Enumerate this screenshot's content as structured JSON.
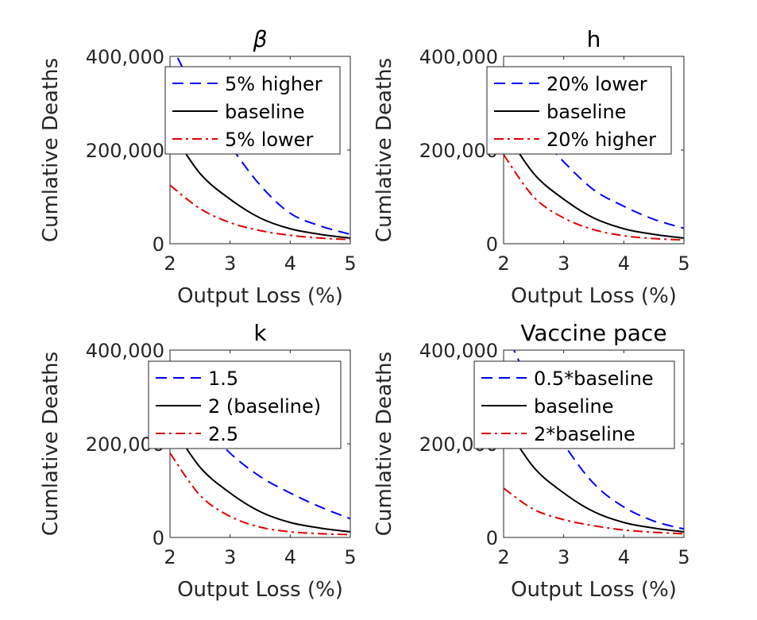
{
  "chart_data": [
    {
      "type": "line",
      "title": "β",
      "title_style": "italic",
      "xlabel": "Output Loss (%)",
      "ylabel": "Cumlative Deaths",
      "xlim": [
        2,
        5
      ],
      "ylim": [
        0,
        400000
      ],
      "xticks": [
        "2",
        "3",
        "4",
        "5"
      ],
      "yticks": [
        "0",
        "200,000",
        "400,000"
      ],
      "legend_position": "top-right",
      "grid": false,
      "series": [
        {
          "name": "5% higher",
          "color": "#0000ff",
          "dash": "dashed",
          "x": [
            2,
            2.5,
            3,
            3.5,
            4,
            4.5,
            5
          ],
          "y": [
            430000,
            305000,
            210000,
            125000,
            65000,
            38000,
            20000
          ]
        },
        {
          "name": "baseline",
          "color": "#000000",
          "dash": "solid",
          "x": [
            2,
            2.5,
            3,
            3.5,
            4,
            4.5,
            5
          ],
          "y": [
            245000,
            150000,
            95000,
            55000,
            32000,
            20000,
            12000
          ]
        },
        {
          "name": "5% lower",
          "color": "#e00000",
          "dash": "dashdot",
          "x": [
            2,
            2.5,
            3,
            3.5,
            4,
            4.5,
            5
          ],
          "y": [
            125000,
            75000,
            45000,
            28000,
            18000,
            12000,
            9000
          ]
        }
      ]
    },
    {
      "type": "line",
      "title": "h",
      "xlabel": "Output Loss (%)",
      "ylabel": "Cumlative Deaths",
      "xlim": [
        2,
        5
      ],
      "ylim": [
        0,
        400000
      ],
      "xticks": [
        "2",
        "3",
        "4",
        "5"
      ],
      "yticks": [
        "0",
        "200,000",
        "400,000"
      ],
      "legend_position": "top-right",
      "grid": false,
      "series": [
        {
          "name": "20% lower",
          "color": "#0000ff",
          "dash": "dashed",
          "x": [
            2,
            2.5,
            3,
            3.5,
            4,
            4.5,
            5
          ],
          "y": [
            320000,
            245000,
            175000,
            115000,
            80000,
            52000,
            33000
          ]
        },
        {
          "name": "baseline",
          "color": "#000000",
          "dash": "solid",
          "x": [
            2,
            2.5,
            3,
            3.5,
            4,
            4.5,
            5
          ],
          "y": [
            245000,
            150000,
            95000,
            55000,
            32000,
            20000,
            12000
          ]
        },
        {
          "name": "20% higher",
          "color": "#e00000",
          "dash": "dashdot",
          "x": [
            2,
            2.5,
            3,
            3.5,
            4,
            4.5,
            5
          ],
          "y": [
            190000,
            100000,
            55000,
            30000,
            17000,
            11000,
            8000
          ]
        }
      ]
    },
    {
      "type": "line",
      "title": "k",
      "xlabel": "Output Loss (%)",
      "ylabel": "Cumlative Deaths",
      "xlim": [
        2,
        5
      ],
      "ylim": [
        0,
        400000
      ],
      "xticks": [
        "2",
        "3",
        "4",
        "5"
      ],
      "yticks": [
        "0",
        "200,000",
        "400,000"
      ],
      "legend_position": "top-right",
      "grid": false,
      "series": [
        {
          "name": "1.5",
          "color": "#0000ff",
          "dash": "dashed",
          "x": [
            2,
            2.5,
            3,
            3.5,
            4,
            4.5,
            5
          ],
          "y": [
            330000,
            250000,
            180000,
            130000,
            95000,
            65000,
            40000
          ]
        },
        {
          "name": "2 (baseline)",
          "color": "#000000",
          "dash": "solid",
          "x": [
            2,
            2.5,
            3,
            3.5,
            4,
            4.5,
            5
          ],
          "y": [
            245000,
            150000,
            95000,
            55000,
            32000,
            20000,
            12000
          ]
        },
        {
          "name": "2.5",
          "color": "#e00000",
          "dash": "dashdot",
          "x": [
            2,
            2.5,
            3,
            3.5,
            4,
            4.5,
            5
          ],
          "y": [
            180000,
            90000,
            45000,
            22000,
            12000,
            8000,
            6000
          ]
        }
      ]
    },
    {
      "type": "line",
      "title": "Vaccine pace",
      "xlabel": "Output Loss (%)",
      "ylabel": "Cumlative Deaths",
      "xlim": [
        2,
        5
      ],
      "ylim": [
        0,
        400000
      ],
      "xticks": [
        "2",
        "3",
        "4",
        "5"
      ],
      "yticks": [
        "0",
        "200,000",
        "400,000"
      ],
      "legend_position": "top-right",
      "grid": false,
      "series": [
        {
          "name": "0.5*baseline",
          "color": "#0000ff",
          "dash": "dashed",
          "x": [
            2,
            2.5,
            3,
            3.5,
            4,
            4.5,
            5
          ],
          "y": [
            450000,
            310000,
            200000,
            115000,
            65000,
            35000,
            18000
          ]
        },
        {
          "name": "baseline",
          "color": "#000000",
          "dash": "solid",
          "x": [
            2,
            2.5,
            3,
            3.5,
            4,
            4.5,
            5
          ],
          "y": [
            245000,
            150000,
            95000,
            55000,
            32000,
            20000,
            12000
          ]
        },
        {
          "name": "2*baseline",
          "color": "#e00000",
          "dash": "dashdot",
          "x": [
            2,
            2.5,
            3,
            3.5,
            4,
            4.5,
            5
          ],
          "y": [
            105000,
            60000,
            38000,
            25000,
            16000,
            11000,
            8000
          ]
        }
      ]
    }
  ]
}
